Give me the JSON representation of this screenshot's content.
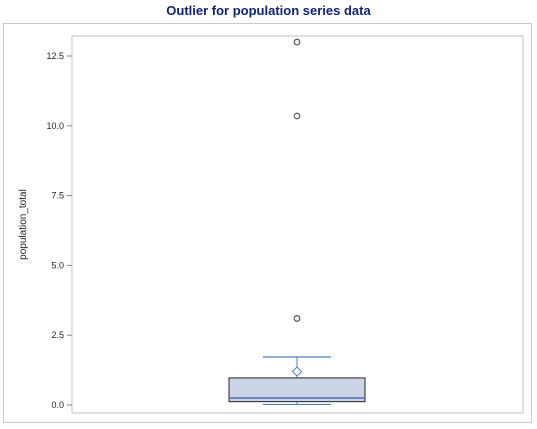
{
  "chart_data": {
    "type": "box",
    "title": "Outlier for population series data",
    "ylabel": "population_total",
    "xlabel": "",
    "ylim": [
      -0.05,
      13.1
    ],
    "yticks": [
      0.0,
      2.5,
      5.0,
      7.5,
      10.0,
      12.5
    ],
    "ytick_labels": [
      "0.0",
      "2.5",
      "5.0",
      "7.5",
      "10.0",
      "12.5"
    ],
    "box": {
      "whisker_low": 0.02,
      "q1": 0.12,
      "median": 0.25,
      "q3": 0.97,
      "whisker_high": 1.72,
      "mean": 1.2
    },
    "outliers": [
      3.1,
      10.35,
      13.0
    ],
    "grid": false,
    "colors": {
      "box_fill": "#ccd5e5",
      "box_edge": "#222222",
      "median": "#4a6fb0",
      "whisker": "#4a7fc0",
      "mean_marker": "#4a7fc0",
      "outlier": "#555555",
      "axis": "#888888",
      "title": "#112277"
    }
  }
}
